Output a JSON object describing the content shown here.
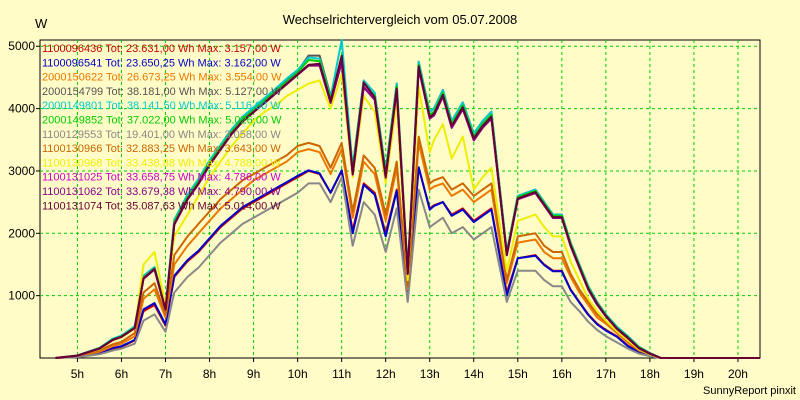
{
  "chart_data": {
    "type": "line",
    "title": "Wechselrichtervergleich vom 05.07.2008",
    "ylabel": "W",
    "footer": "SunnyReport pinxit",
    "x_tick_labels": [
      "5h",
      "6h",
      "7h",
      "8h",
      "9h",
      "10h",
      "11h",
      "12h",
      "13h",
      "14h",
      "15h",
      "16h",
      "17h",
      "18h",
      "19h",
      "20h"
    ],
    "x_tick_values": [
      5,
      6,
      7,
      8,
      9,
      10,
      11,
      12,
      13,
      14,
      15,
      16,
      17,
      18,
      19,
      20
    ],
    "y_tick_labels": [
      "1000",
      "2000",
      "3000",
      "4000",
      "5000"
    ],
    "y_tick_values": [
      1000,
      2000,
      3000,
      4000,
      5000
    ],
    "xlim": [
      4.15,
      20.5
    ],
    "ylim": [
      0,
      5100
    ],
    "grid": true,
    "legend_position": "top-left",
    "x": [
      4.5,
      5.0,
      5.5,
      5.8,
      6.0,
      6.3,
      6.5,
      6.75,
      7.0,
      7.2,
      7.5,
      7.75,
      8.0,
      8.25,
      8.5,
      8.75,
      9.0,
      9.25,
      9.5,
      9.75,
      10.0,
      10.25,
      10.5,
      10.75,
      11.0,
      11.25,
      11.5,
      11.75,
      12.0,
      12.25,
      12.5,
      12.75,
      13.0,
      13.1,
      13.3,
      13.5,
      13.75,
      14.0,
      14.2,
      14.4,
      14.75,
      15.0,
      15.4,
      15.6,
      15.8,
      16.0,
      16.2,
      16.4,
      16.6,
      16.8,
      17.0,
      17.25,
      17.5,
      17.75,
      18.0,
      18.25,
      18.5,
      18.75,
      19.0,
      19.5,
      20.0,
      20.5
    ],
    "series": [
      {
        "name": "1100096436 Tot: 23.631,00 Wh Max: 3.157,00 W",
        "color": "#cc0000",
        "values": [
          0,
          20,
          80,
          150,
          180,
          280,
          750,
          850,
          520,
          1300,
          1550,
          1700,
          1900,
          2100,
          2250,
          2400,
          2500,
          2600,
          2700,
          2800,
          2900,
          3000,
          2950,
          2650,
          3000,
          2050,
          2800,
          2650,
          2000,
          2700,
          1050,
          3050,
          2400,
          2450,
          2500,
          2300,
          2400,
          2200,
          2300,
          2400,
          1050,
          1600,
          1650,
          1500,
          1400,
          1400,
          1100,
          900,
          700,
          550,
          450,
          350,
          200,
          100,
          50,
          0,
          0,
          0,
          0,
          0,
          0,
          0
        ]
      },
      {
        "name": "1100096541 Tot: 23.650,25 Wh Max: 3.162,00 W",
        "color": "#0000cc",
        "values": [
          0,
          25,
          85,
          160,
          190,
          290,
          780,
          880,
          540,
          1320,
          1570,
          1720,
          1920,
          2120,
          2270,
          2420,
          2520,
          2620,
          2720,
          2820,
          2920,
          3010,
          2960,
          2650,
          3010,
          2000,
          2780,
          2620,
          1950,
          2680,
          1000,
          3060,
          2380,
          2440,
          2500,
          2280,
          2380,
          2180,
          2280,
          2380,
          1000,
          1600,
          1640,
          1490,
          1390,
          1390,
          1090,
          890,
          690,
          540,
          440,
          340,
          190,
          90,
          40,
          0,
          0,
          0,
          0,
          0,
          0,
          0
        ]
      },
      {
        "name": "2000150622 Tot: 26.673,25 Wh Max: 3.554,00 W",
        "color": "#ee7700",
        "values": [
          0,
          30,
          100,
          190,
          230,
          350,
          950,
          1100,
          650,
          1500,
          1800,
          2000,
          2200,
          2400,
          2550,
          2700,
          2850,
          2950,
          3050,
          3150,
          3300,
          3350,
          3300,
          2950,
          3350,
          2250,
          3150,
          2950,
          2200,
          3050,
          1100,
          3450,
          2700,
          2750,
          2800,
          2600,
          2700,
          2500,
          2600,
          2700,
          1200,
          1850,
          1900,
          1700,
          1600,
          1600,
          1300,
          1050,
          850,
          650,
          550,
          400,
          250,
          120,
          60,
          0,
          0,
          0,
          0,
          0,
          0,
          0
        ]
      },
      {
        "name": "2000154799 Tot: 38.181,00 Wh Max: 5.127,00 W",
        "color": "#555555",
        "values": [
          0,
          40,
          160,
          300,
          350,
          500,
          1300,
          1450,
          800,
          2200,
          2600,
          2850,
          3150,
          3400,
          3650,
          3850,
          4000,
          4150,
          4300,
          4450,
          4600,
          4850,
          4850,
          4200,
          4800,
          3050,
          4450,
          4250,
          3000,
          4400,
          1400,
          4750,
          3950,
          4000,
          4300,
          3800,
          4100,
          3600,
          3800,
          3950,
          1700,
          2600,
          2700,
          2500,
          2300,
          2300,
          1850,
          1500,
          1150,
          900,
          700,
          500,
          350,
          180,
          80,
          0,
          0,
          0,
          0,
          0,
          0,
          0
        ]
      },
      {
        "name": "2000149801 Tot: 38.141,50 Wh Max: 5.116,00 W",
        "color": "#00cccc",
        "values": [
          0,
          40,
          160,
          310,
          360,
          510,
          1320,
          1460,
          810,
          2220,
          2620,
          2870,
          3170,
          3420,
          3670,
          3870,
          4020,
          4170,
          4320,
          4480,
          4620,
          4820,
          4800,
          4180,
          5100,
          3050,
          4450,
          4250,
          3000,
          4400,
          1400,
          4750,
          3950,
          4000,
          4300,
          3800,
          4100,
          3600,
          3800,
          3950,
          1700,
          2600,
          2700,
          2500,
          2300,
          2300,
          1850,
          1500,
          1150,
          900,
          700,
          500,
          350,
          180,
          80,
          0,
          0,
          0,
          0,
          0,
          0,
          0
        ]
      },
      {
        "name": "2000149852 Tot: 37.022,00 Wh Max: 5.026,00 W",
        "color": "#00cc00",
        "values": [
          0,
          38,
          155,
          295,
          345,
          490,
          1290,
          1440,
          790,
          2180,
          2580,
          2830,
          3130,
          3380,
          3630,
          3830,
          3980,
          4130,
          4280,
          4430,
          4580,
          4780,
          4760,
          4150,
          4780,
          3000,
          4400,
          4200,
          2950,
          4350,
          1380,
          4700,
          3900,
          3950,
          4250,
          3750,
          4050,
          3550,
          3750,
          3900,
          1680,
          2580,
          2680,
          2480,
          2280,
          2280,
          1830,
          1480,
          1130,
          880,
          680,
          480,
          330,
          170,
          75,
          0,
          0,
          0,
          0,
          0,
          0,
          0
        ]
      },
      {
        "name": "1100129553 Tot: 19.401,00 Wh Max: 3.058,00 W",
        "color": "#888888",
        "values": [
          0,
          15,
          60,
          120,
          150,
          230,
          600,
          700,
          420,
          1050,
          1300,
          1450,
          1650,
          1850,
          2000,
          2150,
          2250,
          2350,
          2450,
          2550,
          2650,
          2800,
          2800,
          2500,
          2900,
          1800,
          2500,
          2300,
          1700,
          2400,
          900,
          2700,
          2100,
          2150,
          2250,
          2000,
          2100,
          1900,
          2000,
          2100,
          900,
          1400,
          1400,
          1250,
          1150,
          1150,
          900,
          750,
          580,
          450,
          350,
          250,
          150,
          70,
          30,
          0,
          0,
          0,
          0,
          0,
          0,
          0
        ]
      },
      {
        "name": "1100130966 Tot: 32.883,25 Wh Max: 3.643,00 W",
        "color": "#cc6600",
        "values": [
          0,
          35,
          120,
          220,
          260,
          400,
          1050,
          1200,
          700,
          1650,
          1950,
          2150,
          2350,
          2550,
          2700,
          2850,
          2950,
          3050,
          3150,
          3250,
          3400,
          3450,
          3400,
          3050,
          3450,
          2350,
          3250,
          3050,
          2300,
          3150,
          1150,
          3550,
          2800,
          2850,
          2900,
          2700,
          2800,
          2600,
          2700,
          2800,
          1250,
          1950,
          2000,
          1800,
          1700,
          1700,
          1350,
          1100,
          900,
          700,
          580,
          420,
          260,
          130,
          60,
          0,
          0,
          0,
          0,
          0,
          0,
          0
        ]
      },
      {
        "name": "1100130968 Tot: 33.438,88 Wh Max: 4.788,00 W",
        "color": "#eeee00",
        "values": [
          0,
          40,
          140,
          280,
          330,
          470,
          1500,
          1700,
          850,
          1950,
          2300,
          2600,
          2900,
          3150,
          3400,
          3600,
          3800,
          3950,
          4050,
          4200,
          4300,
          4400,
          4450,
          4000,
          4550,
          2900,
          4200,
          3950,
          2800,
          4100,
          1250,
          4350,
          3300,
          3500,
          3750,
          3200,
          3550,
          2700,
          2900,
          3050,
          1400,
          2200,
          2300,
          2100,
          1950,
          1950,
          1550,
          1250,
          950,
          750,
          600,
          430,
          280,
          140,
          60,
          0,
          0,
          0,
          0,
          0,
          0,
          0
        ]
      },
      {
        "name": "1100131025 Tot: 33.658,75 Wh Max: 4.786,00 W",
        "color": "#cc00cc",
        "values": [
          0,
          38,
          150,
          290,
          340,
          480,
          1280,
          1430,
          780,
          2150,
          2550,
          2800,
          3100,
          3350,
          3600,
          3800,
          3950,
          4100,
          4250,
          4400,
          4550,
          4700,
          4700,
          4100,
          4750,
          2950,
          4350,
          4150,
          2900,
          4300,
          1350,
          4650,
          3850,
          3900,
          4200,
          3700,
          4000,
          3500,
          3700,
          3850,
          1650,
          2550,
          2650,
          2450,
          2250,
          2250,
          1800,
          1450,
          1100,
          860,
          670,
          470,
          320,
          160,
          70,
          0,
          0,
          0,
          0,
          0,
          0,
          0
        ]
      },
      {
        "name": "1100131062 Tot: 33.679,38 Wh Max: 4.790,00 W",
        "color": "#880088",
        "values": [
          0,
          37,
          148,
          288,
          338,
          478,
          1270,
          1420,
          775,
          2140,
          2540,
          2790,
          3090,
          3340,
          3590,
          3790,
          3940,
          4090,
          4240,
          4390,
          4540,
          4690,
          4690,
          4090,
          4740,
          2940,
          4340,
          4140,
          2890,
          4290,
          1345,
          4640,
          3840,
          3890,
          4190,
          3690,
          3990,
          3490,
          3690,
          3840,
          1645,
          2545,
          2645,
          2445,
          2245,
          2245,
          1795,
          1445,
          1095,
          855,
          665,
          465,
          315,
          155,
          68,
          0,
          0,
          0,
          0,
          0,
          0,
          0
        ]
      },
      {
        "name": "1100131074 Tot: 35.087,63 Wh Max: 5.014,00 W",
        "color": "#660033",
        "values": [
          0,
          39,
          152,
          292,
          342,
          482,
          1275,
          1425,
          782,
          2145,
          2545,
          2795,
          3095,
          3345,
          3595,
          3795,
          3945,
          4095,
          4245,
          4395,
          4545,
          4700,
          4720,
          4120,
          4850,
          2960,
          4420,
          4180,
          2920,
          4320,
          1360,
          4680,
          3860,
          3920,
          4220,
          3720,
          4020,
          3520,
          3720,
          3870,
          1660,
          2560,
          2660,
          2460,
          2260,
          2260,
          1810,
          1460,
          1110,
          870,
          675,
          475,
          325,
          160,
          70,
          0,
          0,
          0,
          0,
          0,
          0,
          0
        ]
      }
    ]
  }
}
